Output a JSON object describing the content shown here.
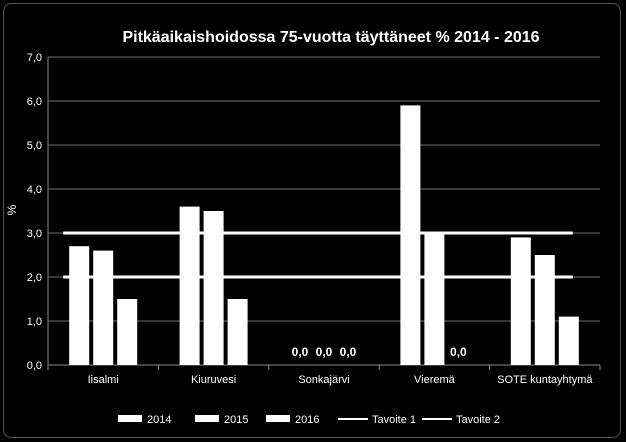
{
  "chart_data": {
    "type": "bar",
    "title": "Pitkäaikaishoidossa 75-vuotta täyttäneet % 2014 - 2016",
    "ylabel": "%",
    "xlabel": "",
    "ylim": [
      0,
      7
    ],
    "yticks": [
      "0,0",
      "1,0",
      "2,0",
      "3,0",
      "4,0",
      "5,0",
      "6,0",
      "7,0"
    ],
    "grid": true,
    "legend_position": "bottom",
    "categories": [
      "Iisalmi",
      "Kiuruvesi",
      "Sonkajärvi",
      "Vieremä",
      "SOTE kuntayhtymä"
    ],
    "series": [
      {
        "name": "2014",
        "values": [
          2.7,
          3.6,
          0.0,
          5.9,
          2.9
        ],
        "color": "#ffffff"
      },
      {
        "name": "2015",
        "values": [
          2.6,
          3.5,
          0.0,
          3.0,
          2.5
        ],
        "color": "#ffffff"
      },
      {
        "name": "2016",
        "values": [
          1.5,
          1.5,
          0.0,
          0.0,
          1.1
        ],
        "color": "#ffffff"
      }
    ],
    "data_labels": [
      {
        "category": 2,
        "series": 0,
        "text": "0,0"
      },
      {
        "category": 2,
        "series": 1,
        "text": "0,0"
      },
      {
        "category": 2,
        "series": 2,
        "text": "0,0"
      },
      {
        "category": 3,
        "series": 2,
        "text": "0,0"
      }
    ],
    "target_lines": [
      {
        "name": "Tavoite 1",
        "value": 3.0,
        "color": "#ffffff"
      },
      {
        "name": "Tavoite 2",
        "value": 2.0,
        "color": "#ffffff"
      }
    ]
  }
}
